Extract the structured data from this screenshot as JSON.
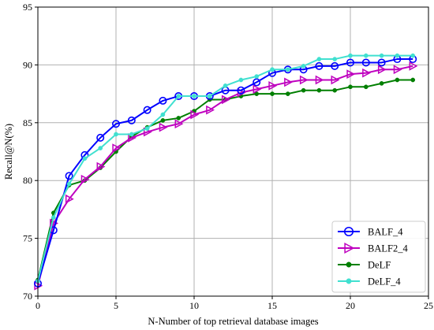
{
  "chart_data": {
    "type": "line",
    "title": "",
    "xlabel": "N-Number of top retrieval database images",
    "ylabel": "Recall@N(%)",
    "xlim": [
      0,
      25
    ],
    "ylim": [
      70,
      95
    ],
    "xticks": [
      0,
      5,
      10,
      15,
      20,
      25
    ],
    "yticks": [
      70,
      75,
      80,
      85,
      90,
      95
    ],
    "grid": true,
    "legend_position": "bottom-right",
    "x": [
      0,
      1,
      2,
      3,
      4,
      5,
      6,
      7,
      8,
      9,
      10,
      11,
      12,
      13,
      14,
      15,
      16,
      17,
      18,
      19,
      20,
      21,
      22,
      23,
      24
    ],
    "series": [
      {
        "name": "BALF_4",
        "color": "#0000ff",
        "marker": "circle",
        "values": [
          71.1,
          75.7,
          80.4,
          82.2,
          83.7,
          84.9,
          85.2,
          86.1,
          86.9,
          87.3,
          87.3,
          87.3,
          87.8,
          87.8,
          88.5,
          89.3,
          89.6,
          89.6,
          89.9,
          89.9,
          90.2,
          90.2,
          90.2,
          90.5,
          90.5
        ]
      },
      {
        "name": "BALF2_4",
        "color": "#bf00bf",
        "marker": "triangle-right",
        "values": [
          70.9,
          76.3,
          78.4,
          80.1,
          81.2,
          82.8,
          83.7,
          84.2,
          84.6,
          84.9,
          85.7,
          86.1,
          87.0,
          87.6,
          87.9,
          88.2,
          88.5,
          88.7,
          88.7,
          88.7,
          89.2,
          89.3,
          89.6,
          89.6,
          89.9
        ]
      },
      {
        "name": "DeLF",
        "color": "#007f00",
        "marker": "dot",
        "values": [
          71.4,
          77.2,
          79.6,
          80.0,
          81.1,
          82.5,
          83.8,
          84.6,
          85.2,
          85.4,
          86.0,
          87.0,
          87.0,
          87.3,
          87.5,
          87.5,
          87.5,
          87.8,
          87.8,
          87.8,
          88.1,
          88.1,
          88.4,
          88.7,
          88.7
        ]
      },
      {
        "name": "DeLF_4",
        "color": "#40e0d0",
        "marker": "dot",
        "values": [
          71.3,
          76.8,
          79.7,
          81.9,
          82.8,
          84.0,
          84.0,
          84.5,
          85.7,
          87.3,
          87.3,
          87.3,
          88.2,
          88.7,
          89.0,
          89.6,
          89.6,
          89.9,
          90.5,
          90.5,
          90.8,
          90.8,
          90.8,
          90.8,
          90.8
        ]
      }
    ]
  }
}
